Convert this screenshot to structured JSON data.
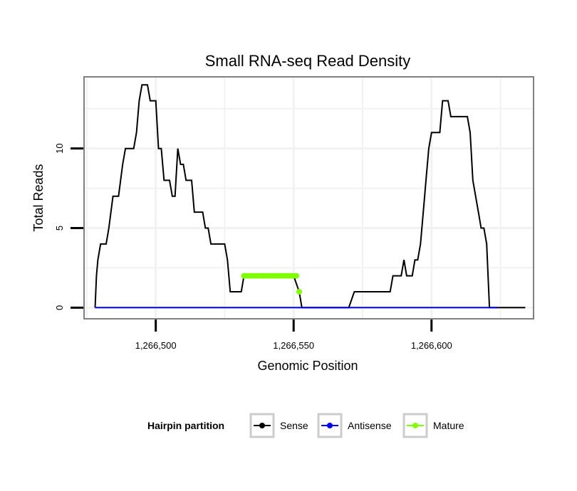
{
  "chart_data": {
    "type": "line",
    "title": "Small RNA-seq Read Density",
    "xlabel": "Genomic Position",
    "ylabel": "Total Reads",
    "xlim": [
      1266474,
      1266637
    ],
    "ylim": [
      -0.7,
      14.5
    ],
    "x_ticks": [
      1266500,
      1266550,
      1266600
    ],
    "x_tick_labels": [
      "1,266,500",
      "1,266,550",
      "1,266,600"
    ],
    "y_ticks": [
      0,
      5,
      10
    ],
    "y_tick_labels": [
      "0",
      "5",
      "10"
    ],
    "grid": true,
    "legend": {
      "title": "Hairpin partition",
      "placement": "bottom",
      "entries": [
        {
          "label": "Sense",
          "color": "#000000"
        },
        {
          "label": "Antisense",
          "color": "#0000ff"
        },
        {
          "label": "Mature",
          "color": "#7fff00"
        }
      ]
    },
    "series": [
      {
        "name": "Sense",
        "color": "#000000",
        "marker": "none",
        "x": [
          1266478,
          1266478.5,
          1266479,
          1266480,
          1266481.5,
          1266482,
          1266483,
          1266484.5,
          1266485,
          1266486,
          1266486.5,
          1266488,
          1266489,
          1266490,
          1266491,
          1266492,
          1266493,
          1266494,
          1266495,
          1266496,
          1266497,
          1266498,
          1266499,
          1266500,
          1266501,
          1266502,
          1266503,
          1266504,
          1266505,
          1266506,
          1266507,
          1266508,
          1266509,
          1266510,
          1266511,
          1266512,
          1266513,
          1266514,
          1266515,
          1266516,
          1266517,
          1266518,
          1266519,
          1266520,
          1266521,
          1266522,
          1266523,
          1266524,
          1266525,
          1266526,
          1266527,
          1266528,
          1266530,
          1266531,
          1266532,
          1266533,
          1266534,
          1266536,
          1266538,
          1266540,
          1266542,
          1266544,
          1266546,
          1266548,
          1266550,
          1266552,
          1266553,
          1266555,
          1266560,
          1266565,
          1266570,
          1266572,
          1266573,
          1266574,
          1266576,
          1266578,
          1266580,
          1266582,
          1266584,
          1266585,
          1266586,
          1266587,
          1266588,
          1266589,
          1266590,
          1266591,
          1266592,
          1266593,
          1266594,
          1266595,
          1266596,
          1266597,
          1266598,
          1266599,
          1266600,
          1266601,
          1266602,
          1266603,
          1266604,
          1266605,
          1266606,
          1266607,
          1266608,
          1266609,
          1266610,
          1266611,
          1266612,
          1266613,
          1266614,
          1266615,
          1266616,
          1266617,
          1266618,
          1266619,
          1266620,
          1266621,
          1266622,
          1266623,
          1266624,
          1266627,
          1266630,
          1266634
        ],
        "y": [
          0,
          2,
          3,
          4,
          4,
          4,
          5,
          7,
          7,
          7,
          7,
          9,
          10,
          10,
          10,
          10,
          11,
          13,
          14,
          14,
          14,
          13,
          13,
          13,
          10,
          10,
          8,
          8,
          8,
          7,
          7,
          10,
          9,
          9,
          8,
          8,
          8,
          6,
          6,
          6,
          6,
          5,
          5,
          4,
          4,
          4,
          4,
          4,
          4,
          3,
          1,
          1,
          1,
          1,
          2,
          2,
          2,
          2,
          2,
          2,
          2,
          2,
          2,
          2,
          2,
          1,
          0,
          0,
          0,
          0,
          0,
          1,
          1,
          1,
          1,
          1,
          1,
          1,
          1,
          1,
          2,
          2,
          2,
          2,
          3,
          2,
          2,
          2,
          3,
          3,
          4,
          6,
          8,
          10,
          11,
          11,
          11,
          11,
          13,
          13,
          13,
          12,
          12,
          12,
          12,
          12,
          12,
          12,
          11,
          8,
          7,
          6,
          5,
          5,
          4,
          0,
          0,
          0,
          0,
          0,
          0,
          0
        ]
      },
      {
        "name": "Antisense",
        "color": "#0000ff",
        "marker": "none",
        "x": [
          1266478,
          1266624
        ],
        "y": [
          0,
          0
        ]
      },
      {
        "name": "Mature",
        "color": "#7fff00",
        "marker": "dot",
        "x": [
          1266532,
          1266533,
          1266534,
          1266535,
          1266536,
          1266537,
          1266538,
          1266539,
          1266540,
          1266541,
          1266542,
          1266543,
          1266544,
          1266545,
          1266546,
          1266547,
          1266548,
          1266549,
          1266550,
          1266551,
          1266552
        ],
        "y": [
          2,
          2,
          2,
          2,
          2,
          2,
          2,
          2,
          2,
          2,
          2,
          2,
          2,
          2,
          2,
          2,
          2,
          2,
          2,
          2,
          1
        ]
      }
    ]
  }
}
